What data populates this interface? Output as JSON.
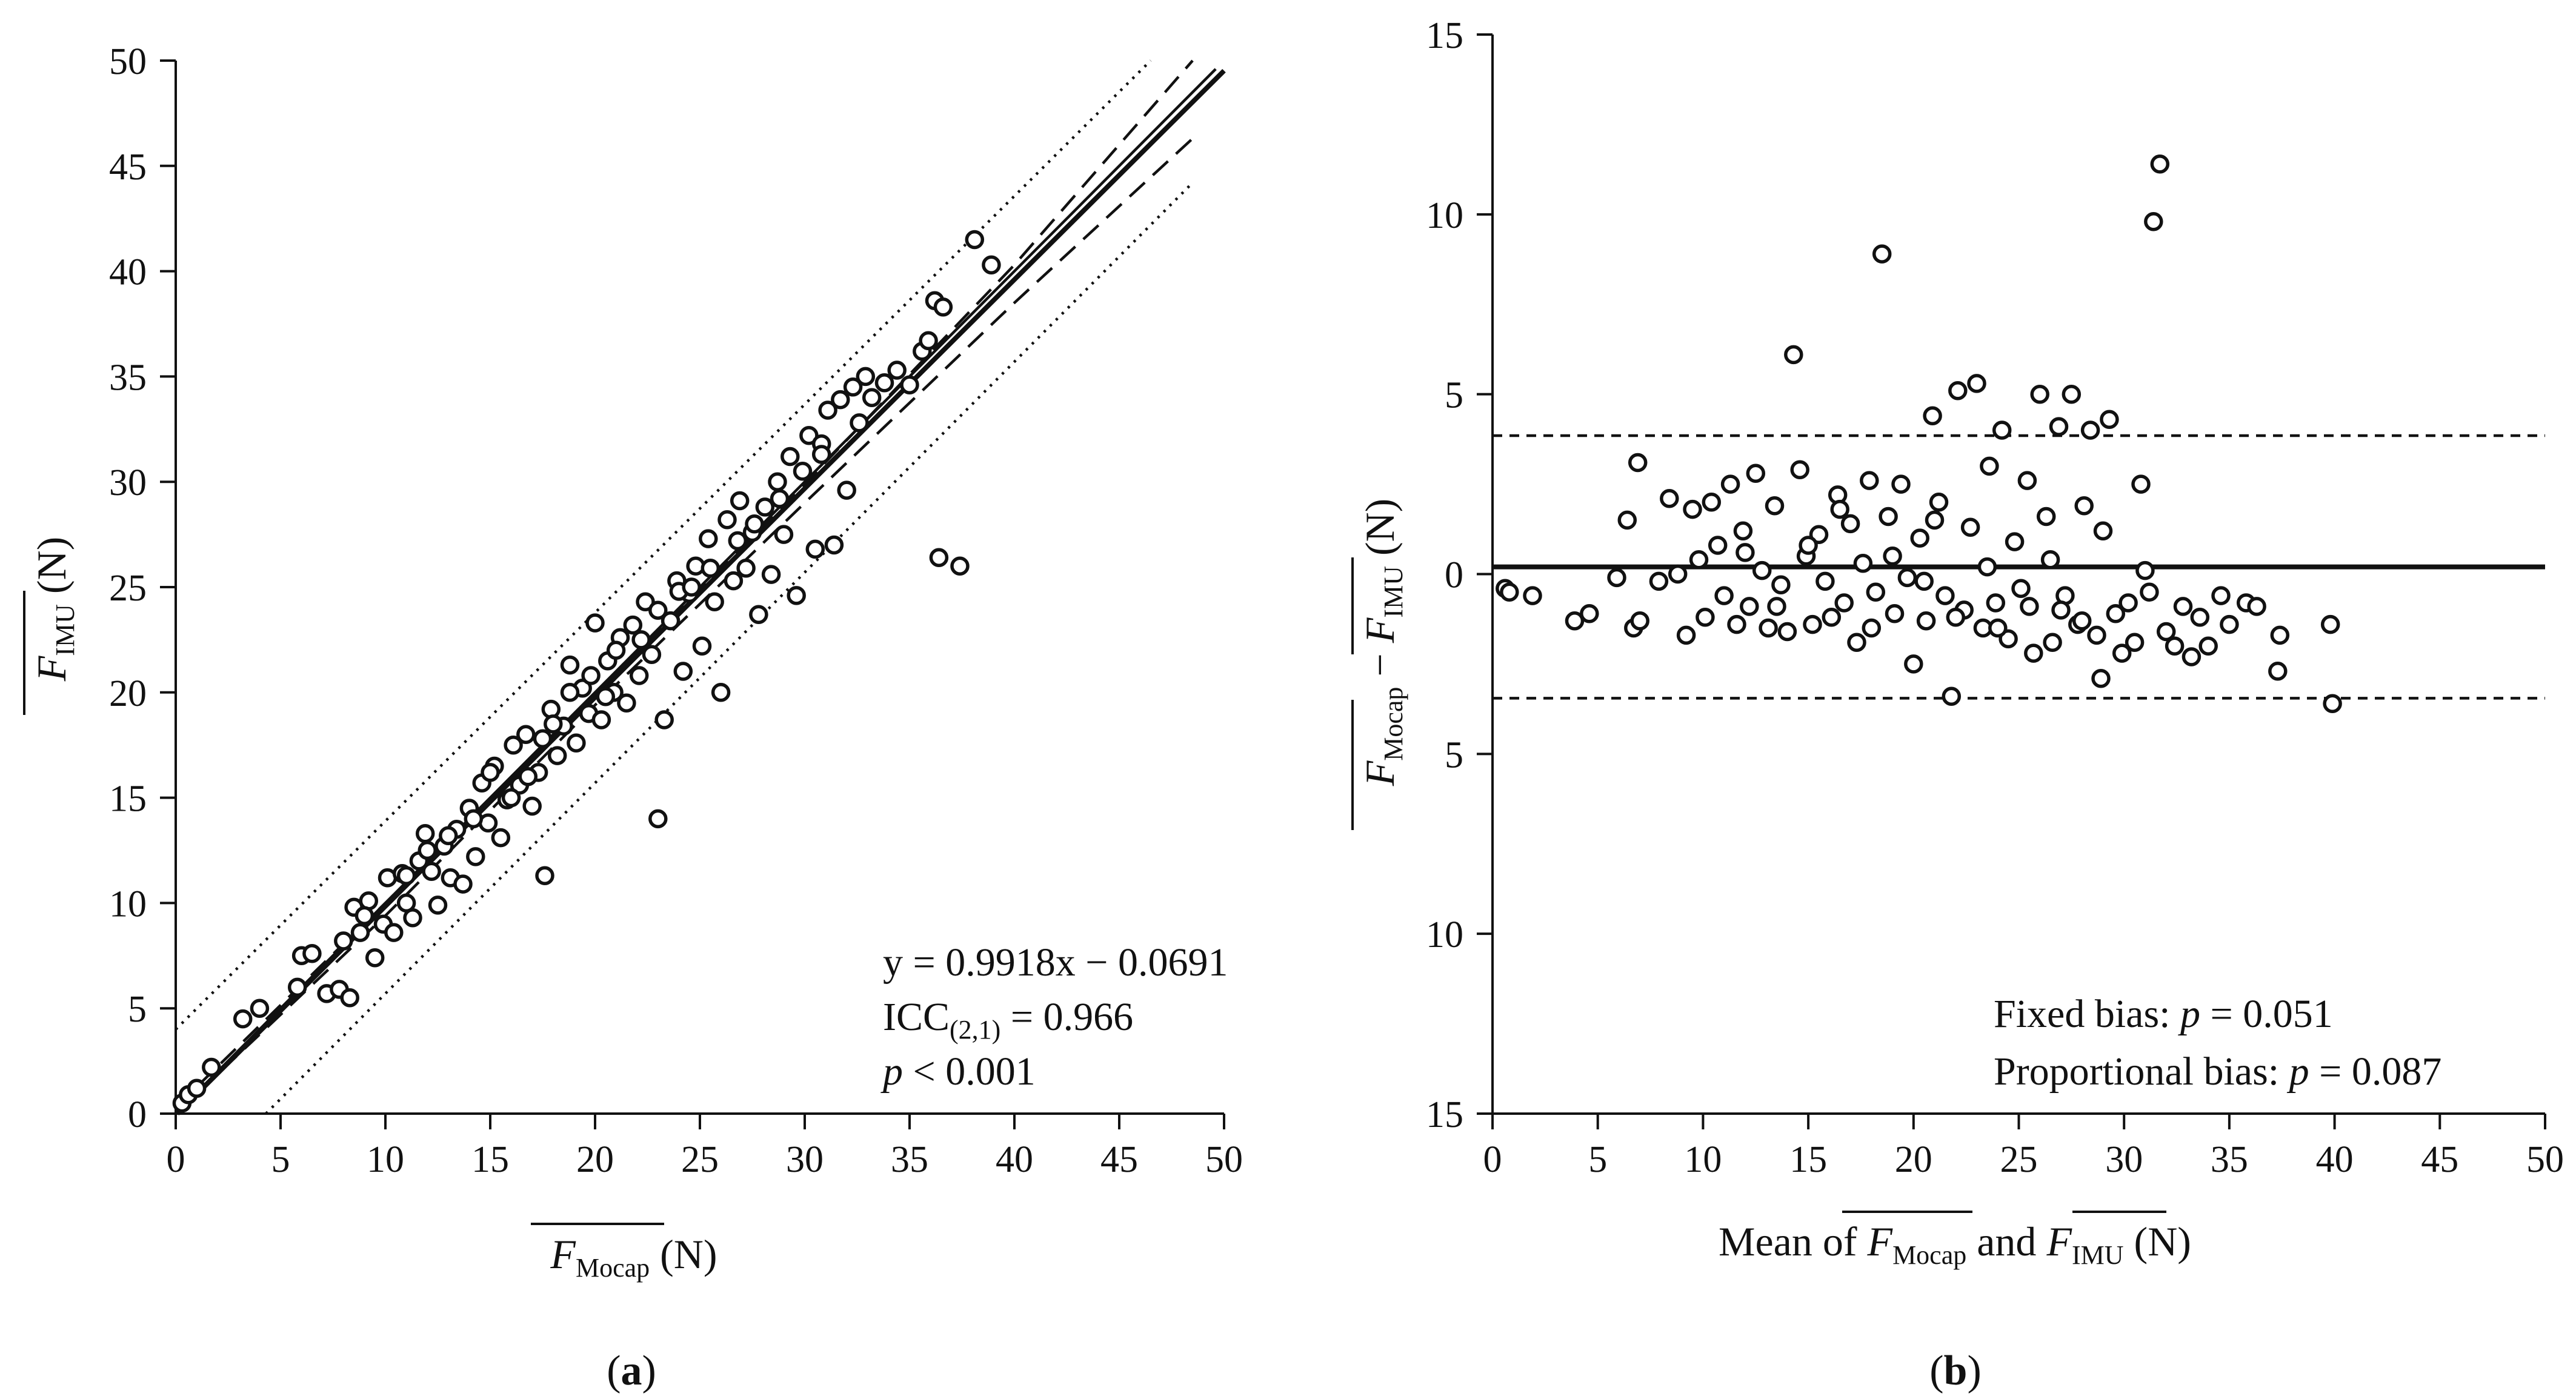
{
  "chart_data": [
    {
      "id": "a",
      "type": "scatter",
      "panel_label_open": "(",
      "panel_label": "a",
      "panel_label_close": ")",
      "xlim": [
        0,
        50
      ],
      "ylim": [
        0,
        50
      ],
      "xticks": [
        0,
        5,
        10,
        15,
        20,
        25,
        30,
        35,
        40,
        45,
        50
      ],
      "yticks": [
        0,
        5,
        10,
        15,
        20,
        25,
        30,
        35,
        40,
        45,
        50
      ],
      "xlabel": {
        "main": "F",
        "sub": "Mocap",
        "unit": " (N)"
      },
      "ylabel": {
        "main": "F",
        "sub": "IMU",
        "unit": " (N)"
      },
      "annotations": {
        "equation": "y = 0.9918x − 0.0691",
        "icc_main": "ICC",
        "icc_sub": "(2,1)",
        "icc_value": " = 0.966",
        "p_symbol": "p",
        "p_value": " < 0.001"
      },
      "lines": {
        "regression": {
          "slope": 0.9918,
          "intercept": -0.0691,
          "style": "solid"
        },
        "identity": {
          "slope": 1.0,
          "intercept": 0.0,
          "style": "solid-thin"
        },
        "confidence_band_upper": {
          "x": [
            0,
            10,
            20,
            30,
            40,
            48.5
          ],
          "y": [
            0.3,
            10.0,
            19.9,
            29.9,
            40.3,
            50.0
          ],
          "style": "dashed"
        },
        "confidence_band_lower": {
          "x": [
            0,
            10,
            20,
            30,
            40,
            48.5
          ],
          "y": [
            -0.6,
            9.4,
            19.4,
            29.0,
            38.5,
            46.3
          ],
          "style": "dashed"
        },
        "prediction_upper": {
          "x": [
            0,
            46.5
          ],
          "y": [
            4.0,
            50.0
          ],
          "style": "dotted"
        },
        "prediction_lower": {
          "x": [
            4.3,
            48.5
          ],
          "y": [
            0.0,
            44.2
          ],
          "style": "dotted"
        }
      },
      "points": [
        [
          0.3,
          0.5
        ],
        [
          0.6,
          0.9
        ],
        [
          1.0,
          1.2
        ],
        [
          1.7,
          2.2
        ],
        [
          3.2,
          4.5
        ],
        [
          4.0,
          5.0
        ],
        [
          5.8,
          6.0
        ],
        [
          6.0,
          7.5
        ],
        [
          6.5,
          7.6
        ],
        [
          7.2,
          5.7
        ],
        [
          7.8,
          5.9
        ],
        [
          8.0,
          8.2
        ],
        [
          8.3,
          5.5
        ],
        [
          8.5,
          9.8
        ],
        [
          8.8,
          8.6
        ],
        [
          9.2,
          10.1
        ],
        [
          9.5,
          7.4
        ],
        [
          9.9,
          9.0
        ],
        [
          10.1,
          11.2
        ],
        [
          10.4,
          8.6
        ],
        [
          10.8,
          11.4
        ],
        [
          11.0,
          10.0
        ],
        [
          11.3,
          9.3
        ],
        [
          11.6,
          12.0
        ],
        [
          11.9,
          13.3
        ],
        [
          12.2,
          11.5
        ],
        [
          12.5,
          9.9
        ],
        [
          12.8,
          12.7
        ],
        [
          13.1,
          11.2
        ],
        [
          13.4,
          13.5
        ],
        [
          13.7,
          10.9
        ],
        [
          14.0,
          14.5
        ],
        [
          14.3,
          12.2
        ],
        [
          14.6,
          15.7
        ],
        [
          14.9,
          13.8
        ],
        [
          15.2,
          16.5
        ],
        [
          15.5,
          13.1
        ],
        [
          15.8,
          14.9
        ],
        [
          16.1,
          17.5
        ],
        [
          16.4,
          15.6
        ],
        [
          16.7,
          18.0
        ],
        [
          17.0,
          14.6
        ],
        [
          17.3,
          16.2
        ],
        [
          17.6,
          11.3
        ],
        [
          17.9,
          19.2
        ],
        [
          18.2,
          17.0
        ],
        [
          18.5,
          18.4
        ],
        [
          18.8,
          21.3
        ],
        [
          19.1,
          17.6
        ],
        [
          19.4,
          20.2
        ],
        [
          19.7,
          19.0
        ],
        [
          20.0,
          23.3
        ],
        [
          20.3,
          18.7
        ],
        [
          20.6,
          21.5
        ],
        [
          20.9,
          20.0
        ],
        [
          21.2,
          22.6
        ],
        [
          21.5,
          19.5
        ],
        [
          21.8,
          23.2
        ],
        [
          22.1,
          20.8
        ],
        [
          22.4,
          24.3
        ],
        [
          22.7,
          21.8
        ],
        [
          23.0,
          14.0
        ],
        [
          23.3,
          18.7
        ],
        [
          23.6,
          23.4
        ],
        [
          23.9,
          25.3
        ],
        [
          24.2,
          21.0
        ],
        [
          24.5,
          24.7
        ],
        [
          24.8,
          26.0
        ],
        [
          25.1,
          22.2
        ],
        [
          25.4,
          27.3
        ],
        [
          25.7,
          24.3
        ],
        [
          26.0,
          20.0
        ],
        [
          26.3,
          28.2
        ],
        [
          26.6,
          25.3
        ],
        [
          26.9,
          29.1
        ],
        [
          27.2,
          25.9
        ],
        [
          27.5,
          27.6
        ],
        [
          27.8,
          23.7
        ],
        [
          28.1,
          28.8
        ],
        [
          28.4,
          25.6
        ],
        [
          28.7,
          30.0
        ],
        [
          29.0,
          27.5
        ],
        [
          29.3,
          31.2
        ],
        [
          29.6,
          24.6
        ],
        [
          29.9,
          30.5
        ],
        [
          30.2,
          32.2
        ],
        [
          30.5,
          26.8
        ],
        [
          30.8,
          31.8
        ],
        [
          31.1,
          33.4
        ],
        [
          31.4,
          27.0
        ],
        [
          31.7,
          33.9
        ],
        [
          32.0,
          29.6
        ],
        [
          32.3,
          34.5
        ],
        [
          32.6,
          32.8
        ],
        [
          32.9,
          35.0
        ],
        [
          33.2,
          34.0
        ],
        [
          33.8,
          34.7
        ],
        [
          34.4,
          35.3
        ],
        [
          35.0,
          34.6
        ],
        [
          35.6,
          36.2
        ],
        [
          35.9,
          36.7
        ],
        [
          36.2,
          38.6
        ],
        [
          36.4,
          26.4
        ],
        [
          36.6,
          38.3
        ],
        [
          37.4,
          26.0
        ],
        [
          38.1,
          41.5
        ],
        [
          38.9,
          40.3
        ],
        [
          15.0,
          16.2
        ],
        [
          16.0,
          15.0
        ],
        [
          17.5,
          17.8
        ],
        [
          18.8,
          20.0
        ],
        [
          19.8,
          20.8
        ],
        [
          21.0,
          22.0
        ],
        [
          22.2,
          22.5
        ],
        [
          24.0,
          24.8
        ],
        [
          25.5,
          25.9
        ],
        [
          26.8,
          27.2
        ],
        [
          27.6,
          28.0
        ],
        [
          28.8,
          29.2
        ],
        [
          30.8,
          31.3
        ],
        [
          12.0,
          12.5
        ],
        [
          13.0,
          13.2
        ],
        [
          14.2,
          14.0
        ],
        [
          11.0,
          11.3
        ],
        [
          9.0,
          9.4
        ],
        [
          16.8,
          16.0
        ],
        [
          18.0,
          18.5
        ],
        [
          20.5,
          19.8
        ],
        [
          23.0,
          23.9
        ],
        [
          24.6,
          25.0
        ]
      ]
    },
    {
      "id": "b",
      "type": "scatter",
      "panel_label_open": "(",
      "panel_label": "b",
      "panel_label_close": ")",
      "xlim": [
        0,
        50
      ],
      "ylim": [
        -15,
        15
      ],
      "xticks": [
        0,
        5,
        10,
        15,
        20,
        25,
        30,
        35,
        40,
        45,
        50
      ],
      "yticks": [
        15,
        10,
        5,
        0,
        -5,
        -10,
        -15
      ],
      "ytick_labels": [
        "15",
        "10",
        "5",
        "0",
        "5",
        "10",
        "15"
      ],
      "xlabel": {
        "pre": "Mean of ",
        "a_main": "F",
        "a_sub": "Mocap",
        "mid": " and ",
        "b_main": "F",
        "b_sub": "IMU",
        "unit": " (N)"
      },
      "ylabel": {
        "a_main": "F",
        "a_sub": "Mocap",
        "mid": " − ",
        "b_main": "F",
        "b_sub": "IMU",
        "unit": " (N)"
      },
      "annotations": {
        "fixed_label": "Fixed bias: ",
        "fixed_p": "p",
        "fixed_value": " = 0.051",
        "prop_label": "Proportional bias: ",
        "prop_p": "p",
        "prop_value": " = 0.087"
      },
      "lines": {
        "mean_bias": 0.2,
        "upper_loa": 3.85,
        "lower_loa": -3.45
      },
      "points": [
        [
          0.6,
          -0.4
        ],
        [
          0.8,
          -0.5
        ],
        [
          1.9,
          -0.6
        ],
        [
          3.9,
          -1.3
        ],
        [
          4.6,
          -1.1
        ],
        [
          5.9,
          -0.1
        ],
        [
          6.4,
          1.5
        ],
        [
          6.7,
          -1.5
        ],
        [
          6.9,
          3.1
        ],
        [
          7.0,
          -1.3
        ],
        [
          7.9,
          -0.2
        ],
        [
          8.4,
          2.1
        ],
        [
          8.8,
          0.0
        ],
        [
          9.2,
          -1.7
        ],
        [
          9.5,
          1.8
        ],
        [
          9.8,
          0.4
        ],
        [
          10.1,
          -1.2
        ],
        [
          10.4,
          2.0
        ],
        [
          10.7,
          0.8
        ],
        [
          11.0,
          -0.6
        ],
        [
          11.3,
          2.5
        ],
        [
          11.6,
          -1.4
        ],
        [
          11.9,
          1.2
        ],
        [
          12.2,
          -0.9
        ],
        [
          12.5,
          2.8
        ],
        [
          12.8,
          0.1
        ],
        [
          13.1,
          -1.5
        ],
        [
          13.4,
          1.9
        ],
        [
          13.7,
          -0.3
        ],
        [
          14.0,
          -1.6
        ],
        [
          14.3,
          6.1
        ],
        [
          14.6,
          2.9
        ],
        [
          14.9,
          0.5
        ],
        [
          15.2,
          -1.4
        ],
        [
          15.5,
          1.1
        ],
        [
          15.8,
          -0.2
        ],
        [
          16.1,
          -1.2
        ],
        [
          16.4,
          2.2
        ],
        [
          16.7,
          -0.8
        ],
        [
          17.0,
          1.4
        ],
        [
          17.3,
          -1.9
        ],
        [
          17.6,
          0.3
        ],
        [
          17.9,
          2.6
        ],
        [
          18.2,
          -0.5
        ],
        [
          18.5,
          8.9
        ],
        [
          18.8,
          1.6
        ],
        [
          19.1,
          -1.1
        ],
        [
          19.4,
          2.5
        ],
        [
          19.7,
          -0.1
        ],
        [
          20.0,
          -2.5
        ],
        [
          20.3,
          1.0
        ],
        [
          20.6,
          -1.3
        ],
        [
          20.9,
          4.4
        ],
        [
          21.2,
          2.0
        ],
        [
          21.5,
          -0.6
        ],
        [
          21.8,
          -3.4
        ],
        [
          22.1,
          5.1
        ],
        [
          22.4,
          -1.0
        ],
        [
          22.7,
          1.3
        ],
        [
          23.0,
          5.3
        ],
        [
          23.3,
          -1.5
        ],
        [
          23.6,
          3.0
        ],
        [
          23.9,
          -0.8
        ],
        [
          24.2,
          4.0
        ],
        [
          24.5,
          -1.8
        ],
        [
          24.8,
          0.9
        ],
        [
          25.1,
          -0.4
        ],
        [
          25.4,
          2.6
        ],
        [
          25.7,
          -2.2
        ],
        [
          26.0,
          5.0
        ],
        [
          26.3,
          1.6
        ],
        [
          26.6,
          -1.9
        ],
        [
          26.9,
          4.1
        ],
        [
          27.2,
          -0.6
        ],
        [
          27.5,
          5.0
        ],
        [
          27.8,
          -1.4
        ],
        [
          28.1,
          1.9
        ],
        [
          28.4,
          4.0
        ],
        [
          28.7,
          -1.7
        ],
        [
          28.9,
          -2.9
        ],
        [
          29.0,
          1.2
        ],
        [
          29.3,
          4.3
        ],
        [
          29.6,
          -1.1
        ],
        [
          29.9,
          -2.2
        ],
        [
          30.2,
          -0.8
        ],
        [
          30.5,
          -1.9
        ],
        [
          30.8,
          2.5
        ],
        [
          31.0,
          0.1
        ],
        [
          31.2,
          -0.5
        ],
        [
          31.4,
          9.8
        ],
        [
          31.7,
          11.4
        ],
        [
          32.0,
          -1.6
        ],
        [
          32.4,
          -2.0
        ],
        [
          32.8,
          -0.9
        ],
        [
          33.2,
          -2.3
        ],
        [
          33.6,
          -1.2
        ],
        [
          34.0,
          -2.0
        ],
        [
          34.6,
          -0.6
        ],
        [
          35.0,
          -1.4
        ],
        [
          35.8,
          -0.8
        ],
        [
          36.3,
          -0.9
        ],
        [
          37.4,
          -1.7
        ],
        [
          37.3,
          -2.7
        ],
        [
          39.8,
          -1.4
        ],
        [
          39.9,
          -3.6
        ],
        [
          12.0,
          0.6
        ],
        [
          13.5,
          -0.9
        ],
        [
          15.0,
          0.8
        ],
        [
          16.5,
          1.8
        ],
        [
          18.0,
          -1.5
        ],
        [
          19.0,
          0.5
        ],
        [
          20.5,
          -0.2
        ],
        [
          21.0,
          1.5
        ],
        [
          22.0,
          -1.2
        ],
        [
          23.5,
          0.2
        ],
        [
          24.0,
          -1.5
        ],
        [
          25.5,
          -0.9
        ],
        [
          26.5,
          0.4
        ],
        [
          27.0,
          -1.0
        ],
        [
          28.0,
          -1.3
        ]
      ]
    }
  ]
}
